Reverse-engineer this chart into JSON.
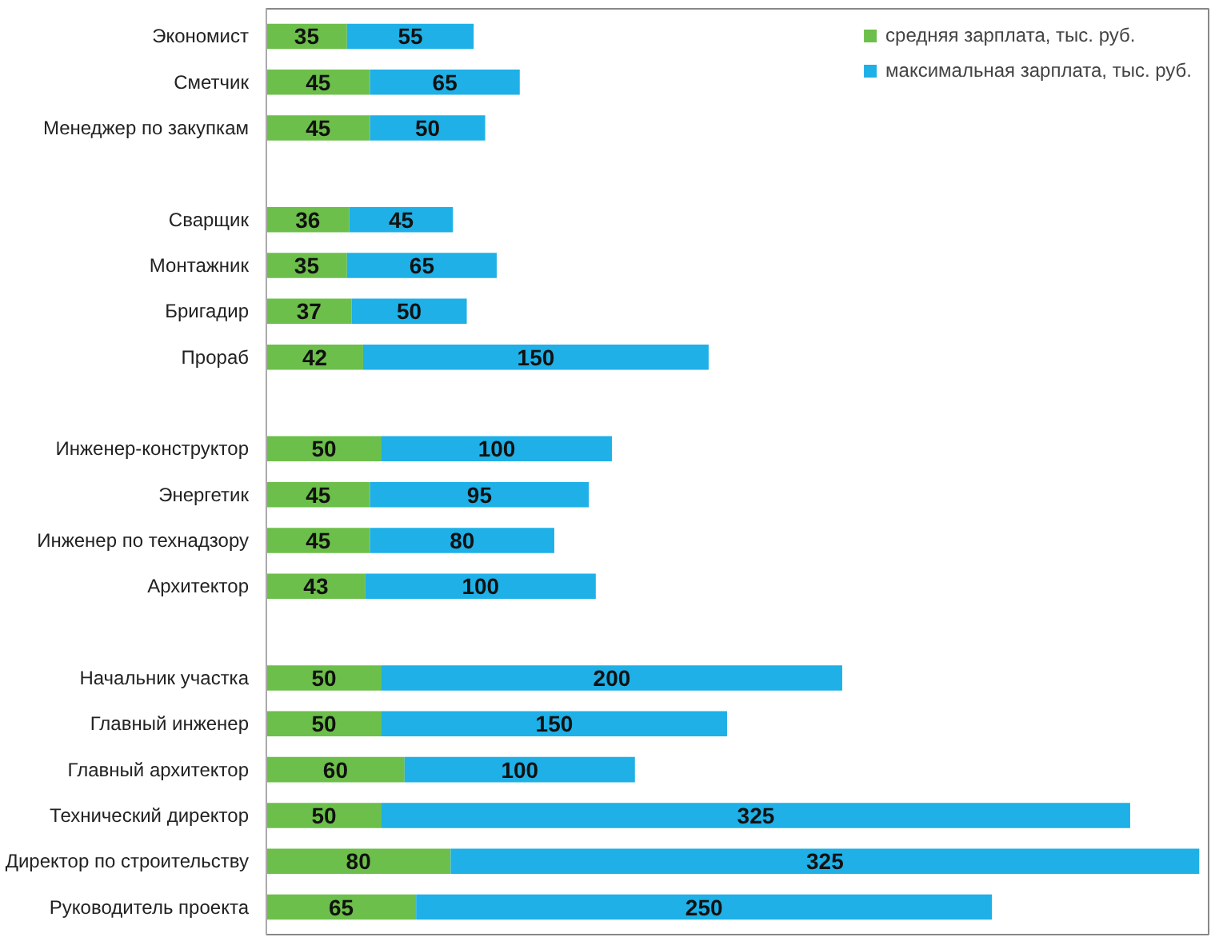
{
  "chart_data": {
    "type": "bar",
    "orientation": "horizontal",
    "stacked": true,
    "data_labels": true,
    "grid": false,
    "legend": "top right",
    "categories": [
      "Экономист",
      "Сметчик",
      "Менеджер по закупкам",
      null,
      "Сварщик",
      "Монтажник",
      "Бригадир",
      "Прораб",
      null,
      "Инженер-конструктор",
      "Энергетик",
      "Инженер по технадзору",
      "Архитектор",
      null,
      "Начальник участка",
      "Главный инженер",
      "Главный архитектор",
      "Технический директор",
      "Директор по строительству",
      "Руководитель проекта"
    ],
    "series": [
      {
        "name": "средняя зарплата, тыс. руб.",
        "color": "#6cbf4a",
        "values": [
          35,
          45,
          45,
          null,
          36,
          35,
          37,
          42,
          null,
          50,
          45,
          45,
          43,
          null,
          50,
          50,
          60,
          50,
          80,
          65
        ]
      },
      {
        "name": "максимальная зарплата, тыс. руб.",
        "color": "#1eb0e6",
        "values": [
          55,
          65,
          50,
          null,
          45,
          65,
          50,
          150,
          null,
          100,
          95,
          80,
          100,
          null,
          200,
          150,
          100,
          325,
          325,
          250
        ]
      }
    ]
  }
}
